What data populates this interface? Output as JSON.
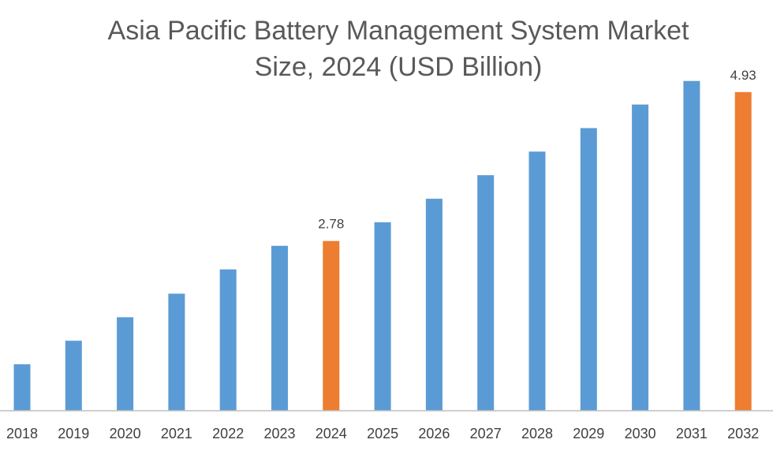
{
  "chart_data": {
    "type": "bar",
    "title_line1": "Asia Pacific Battery Management System Market",
    "title_line2": "Size, 2024 (USD Billion)",
    "categories": [
      "2018",
      "2019",
      "2020",
      "2021",
      "2022",
      "2023",
      "2024",
      "2025",
      "2026",
      "2027",
      "2028",
      "2029",
      "2030",
      "2031",
      "2032"
    ],
    "values": [
      1.0,
      1.34,
      1.68,
      2.02,
      2.37,
      2.71,
      2.78,
      3.05,
      3.39,
      3.73,
      4.07,
      4.41,
      4.75,
      5.09,
      4.93
    ],
    "highlighted": [
      6,
      14
    ],
    "data_labels": [
      {
        "index": 6,
        "text": "2.78"
      },
      {
        "index": 14,
        "text": "4.93"
      }
    ],
    "xlabel": "",
    "ylabel": "",
    "ylim": [
      0.33,
      5.61
    ],
    "colors": {
      "bar": "#5B9BD5",
      "highlight": "#ED7D31",
      "axis": "#BFBFBF",
      "label": "#404040",
      "title": "#595959"
    }
  }
}
